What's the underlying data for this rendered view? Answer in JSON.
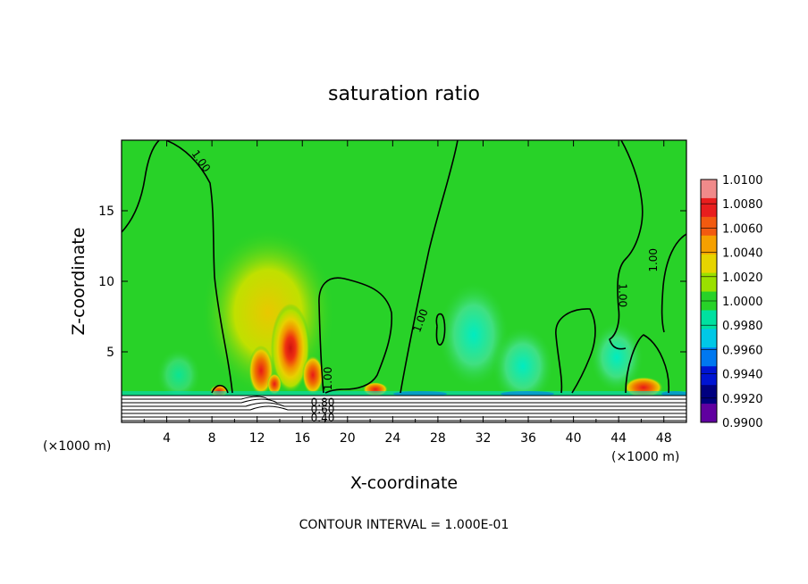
{
  "chart_data": {
    "type": "heatmap",
    "title": "saturation ratio",
    "xlabel": "X-coordinate",
    "ylabel": "Z-coordinate",
    "x_unit_left": "(×1000 m)",
    "x_unit_right": "(×1000 m)",
    "footer": "CONTOUR INTERVAL = 1.000E-01",
    "xlim": [
      0,
      50
    ],
    "ylim": [
      0,
      20
    ],
    "x_ticks": [
      "4",
      "8",
      "12",
      "16",
      "20",
      "24",
      "28",
      "32",
      "36",
      "40",
      "44",
      "48"
    ],
    "x_tick_values": [
      4,
      8,
      12,
      16,
      20,
      24,
      28,
      32,
      36,
      40,
      44,
      48
    ],
    "y_ticks": [
      "5",
      "10",
      "15"
    ],
    "y_tick_values": [
      5,
      10,
      15
    ],
    "colorbar": {
      "labels": [
        "1.0100",
        "1.0080",
        "1.0060",
        "1.0040",
        "1.0020",
        "1.0000",
        "0.9980",
        "0.9960",
        "0.9940",
        "0.9920",
        "0.9900"
      ],
      "colors": [
        "#f08a8a",
        "#e81e1e",
        "#f25a10",
        "#f5a000",
        "#e6d400",
        "#9ae000",
        "#28d228",
        "#00e0a0",
        "#00c8e6",
        "#0078f0",
        "#0014d2",
        "#000080",
        "#6000a0"
      ]
    },
    "contour_labels": [
      {
        "text": "1.00",
        "x": 7.0,
        "z": 18.5,
        "rotation": 55
      },
      {
        "text": "1.00",
        "x": 18.3,
        "z": 3.1,
        "rotation": -90
      },
      {
        "text": "1.00",
        "x": 26.5,
        "z": 7.2,
        "rotation": -70
      },
      {
        "text": "1.00",
        "x": 44.3,
        "z": 9.0,
        "rotation": 90
      },
      {
        "text": "1.00",
        "x": 47.1,
        "z": 11.5,
        "rotation": -90
      },
      {
        "text": "0.80",
        "x": 17.8,
        "z": 1.4,
        "rotation": 0
      },
      {
        "text": "0.60",
        "x": 17.8,
        "z": 0.9,
        "rotation": 0
      },
      {
        "text": "0.40",
        "x": 17.8,
        "z": 0.3,
        "rotation": 0
      }
    ]
  }
}
